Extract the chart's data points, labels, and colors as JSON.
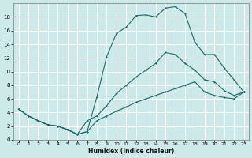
{
  "xlabel": "Humidex (Indice chaleur)",
  "background_color": "#cee9e9",
  "grid_color": "#b8d8d8",
  "line_color": "#1a6b6b",
  "xlim": [
    -0.5,
    23.5
  ],
  "ylim": [
    0,
    20
  ],
  "yticks": [
    0,
    2,
    4,
    6,
    8,
    10,
    12,
    14,
    16,
    18
  ],
  "xticks": [
    0,
    1,
    2,
    3,
    4,
    5,
    6,
    7,
    8,
    9,
    10,
    11,
    12,
    13,
    14,
    15,
    16,
    17,
    18,
    19,
    20,
    21,
    22,
    23
  ],
  "line1_x": [
    0,
    1,
    2,
    3,
    4,
    5,
    6,
    7,
    8,
    9,
    10,
    11,
    12,
    13,
    14,
    15,
    16,
    17,
    18,
    19,
    20,
    21,
    22,
    23
  ],
  "line1_y": [
    4.5,
    3.5,
    2.8,
    2.2,
    2.0,
    1.5,
    0.8,
    1.2,
    6.3,
    12.2,
    15.6,
    16.5,
    18.2,
    18.3,
    18.0,
    19.3,
    19.5,
    18.5,
    14.3,
    12.5,
    12.5,
    10.5,
    8.8,
    7.0
  ],
  "line2_x": [
    0,
    1,
    2,
    3,
    4,
    5,
    6,
    7,
    8,
    9,
    10,
    11,
    12,
    13,
    14,
    15,
    16,
    17,
    18,
    19,
    20,
    21,
    22,
    23
  ],
  "line2_y": [
    4.5,
    3.5,
    2.8,
    2.2,
    2.0,
    1.5,
    0.8,
    2.8,
    3.5,
    5.0,
    6.8,
    8.0,
    9.2,
    10.2,
    11.2,
    12.8,
    12.5,
    11.2,
    10.2,
    8.8,
    8.5,
    7.2,
    6.5,
    7.0
  ],
  "line3_x": [
    0,
    1,
    2,
    3,
    4,
    5,
    6,
    7,
    8,
    9,
    10,
    11,
    12,
    13,
    14,
    15,
    16,
    17,
    18,
    19,
    20,
    21,
    22,
    23
  ],
  "line3_y": [
    4.5,
    3.5,
    2.8,
    2.2,
    2.0,
    1.5,
    0.8,
    1.2,
    2.8,
    3.5,
    4.2,
    4.8,
    5.5,
    6.0,
    6.5,
    7.0,
    7.5,
    8.0,
    8.5,
    7.0,
    6.5,
    6.2,
    6.0,
    7.0
  ]
}
